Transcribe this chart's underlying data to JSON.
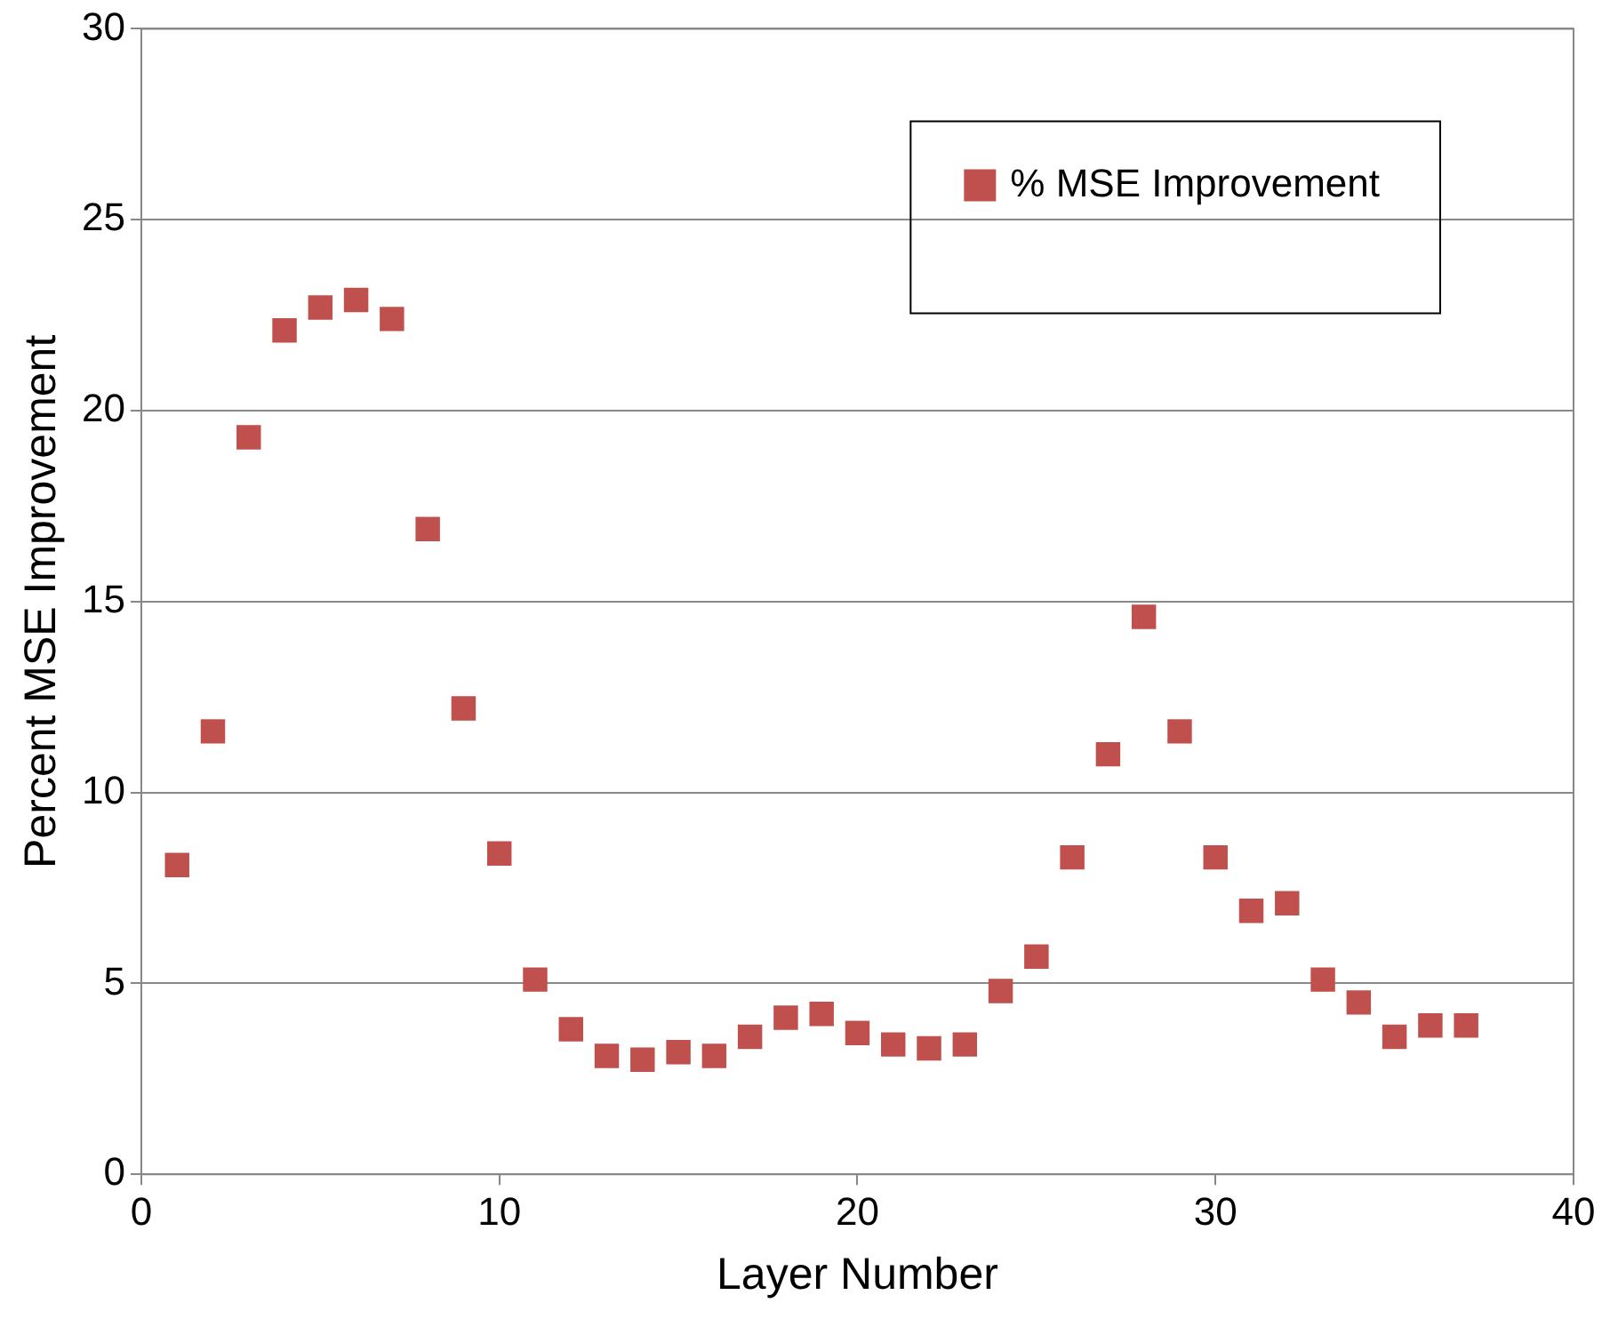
{
  "chart_data": {
    "type": "scatter",
    "xlabel": "Layer Number",
    "ylabel": "Percent MSE Improvement",
    "x": [
      1,
      2,
      3,
      4,
      5,
      6,
      7,
      8,
      9,
      10,
      11,
      12,
      13,
      14,
      15,
      16,
      17,
      18,
      19,
      20,
      21,
      22,
      23,
      24,
      25,
      26,
      27,
      28,
      29,
      30,
      31,
      32,
      33,
      34,
      35,
      36,
      37
    ],
    "series": [
      {
        "name": "% MSE Improvement",
        "color": "#c0504d",
        "values": [
          8.1,
          11.6,
          19.3,
          22.1,
          22.7,
          22.9,
          22.4,
          16.9,
          12.2,
          8.4,
          5.1,
          3.8,
          3.1,
          3.0,
          3.2,
          3.1,
          3.6,
          4.1,
          4.2,
          3.7,
          3.4,
          3.3,
          3.4,
          4.8,
          5.7,
          8.3,
          11.0,
          14.6,
          11.6,
          8.3,
          6.9,
          7.1,
          5.1,
          4.5,
          3.6,
          3.9,
          3.9
        ]
      }
    ],
    "xlim": [
      0,
      40
    ],
    "xticks": [
      0,
      10,
      20,
      30,
      40
    ],
    "ylim": [
      0,
      30
    ],
    "yticks": [
      0,
      5,
      10,
      15,
      20,
      25,
      30
    ],
    "grid": "y",
    "legend": "top right",
    "marker": "square"
  }
}
